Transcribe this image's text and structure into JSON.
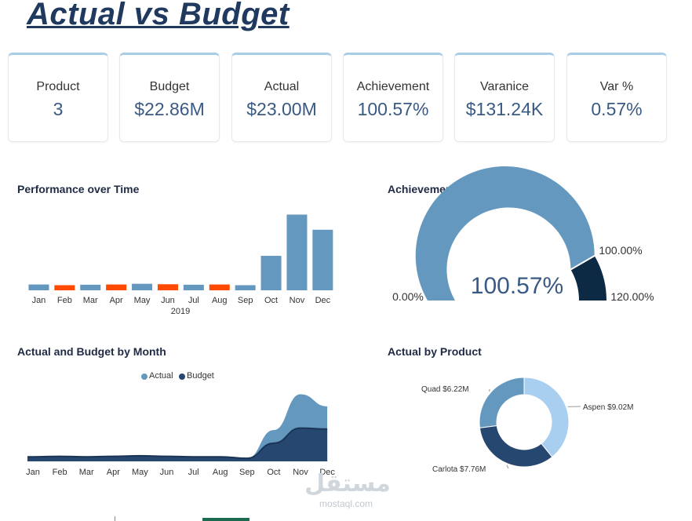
{
  "page_title": "Actual vs Budget",
  "kpis": [
    {
      "label": "Product",
      "value": "3"
    },
    {
      "label": "Budget",
      "value": "$22.86M"
    },
    {
      "label": "Actual",
      "value": "$23.00M"
    },
    {
      "label": "Achievement",
      "value": "100.57%"
    },
    {
      "label": "Varanice",
      "value": "$131.24K"
    },
    {
      "label": "Var %",
      "value": "0.57%"
    }
  ],
  "sections": {
    "performance": "Performance over Time",
    "achievement": "Achievement",
    "actual_budget": "Actual and Budget by Month",
    "by_product": "Actual by Product"
  },
  "colors": {
    "positive": "#6598bf",
    "negative": "#ff4a00",
    "actual": "#6598bf",
    "budget": "#26476f",
    "gauge_fill": "#6598bf",
    "gauge_over": "#0d2a45",
    "donut": [
      "#a9cff0",
      "#26476f",
      "#6598bf"
    ]
  },
  "watermark": {
    "arabic": "مستقل",
    "latin": "mostaql.com"
  },
  "chart_data": [
    {
      "type": "bar",
      "title": "Performance over Time",
      "categories": [
        "Jan",
        "Feb",
        "Mar",
        "Apr",
        "May",
        "Jun",
        "Jul",
        "Aug",
        "Sep",
        "Oct",
        "Nov",
        "Dec"
      ],
      "year_label": "2019",
      "values": [
        25,
        -22,
        24,
        -25,
        28,
        -26,
        24,
        -25,
        22,
        148,
        325,
        260
      ],
      "ylim": [
        -30,
        330
      ]
    },
    {
      "type": "gauge",
      "title": "Achievement",
      "value": 100.57,
      "value_label": "100.57%",
      "min": 0,
      "min_label": "0.00%",
      "max": 120,
      "max_label": "120.00%",
      "target": 100,
      "target_label": "100.00%"
    },
    {
      "type": "area",
      "title": "Actual and Budget by Month",
      "categories": [
        "Jan",
        "Feb",
        "Mar",
        "Apr",
        "May",
        "Jun",
        "Jul",
        "Aug",
        "Sep",
        "Oct",
        "Nov",
        "Dec"
      ],
      "series": [
        {
          "name": "Actual",
          "values": [
            1.0,
            1.0,
            1.0,
            1.1,
            1.2,
            1.1,
            1.0,
            1.0,
            0.6,
            6.2,
            13.3,
            10.9
          ]
        },
        {
          "name": "Budget",
          "values": [
            0.9,
            1.0,
            0.9,
            1.0,
            1.1,
            1.0,
            0.9,
            0.9,
            0.6,
            3.6,
            6.6,
            6.4
          ]
        }
      ],
      "ylim": [
        0,
        14
      ]
    },
    {
      "type": "pie",
      "title": "Actual by Product",
      "slices": [
        {
          "name": "Aspen",
          "value": 9.02,
          "label": "Aspen $9.02M"
        },
        {
          "name": "Carlota",
          "value": 7.76,
          "label": "Carlota $7.76M"
        },
        {
          "name": "Quad",
          "value": 6.22,
          "label": "Quad $6.22M"
        }
      ]
    }
  ]
}
